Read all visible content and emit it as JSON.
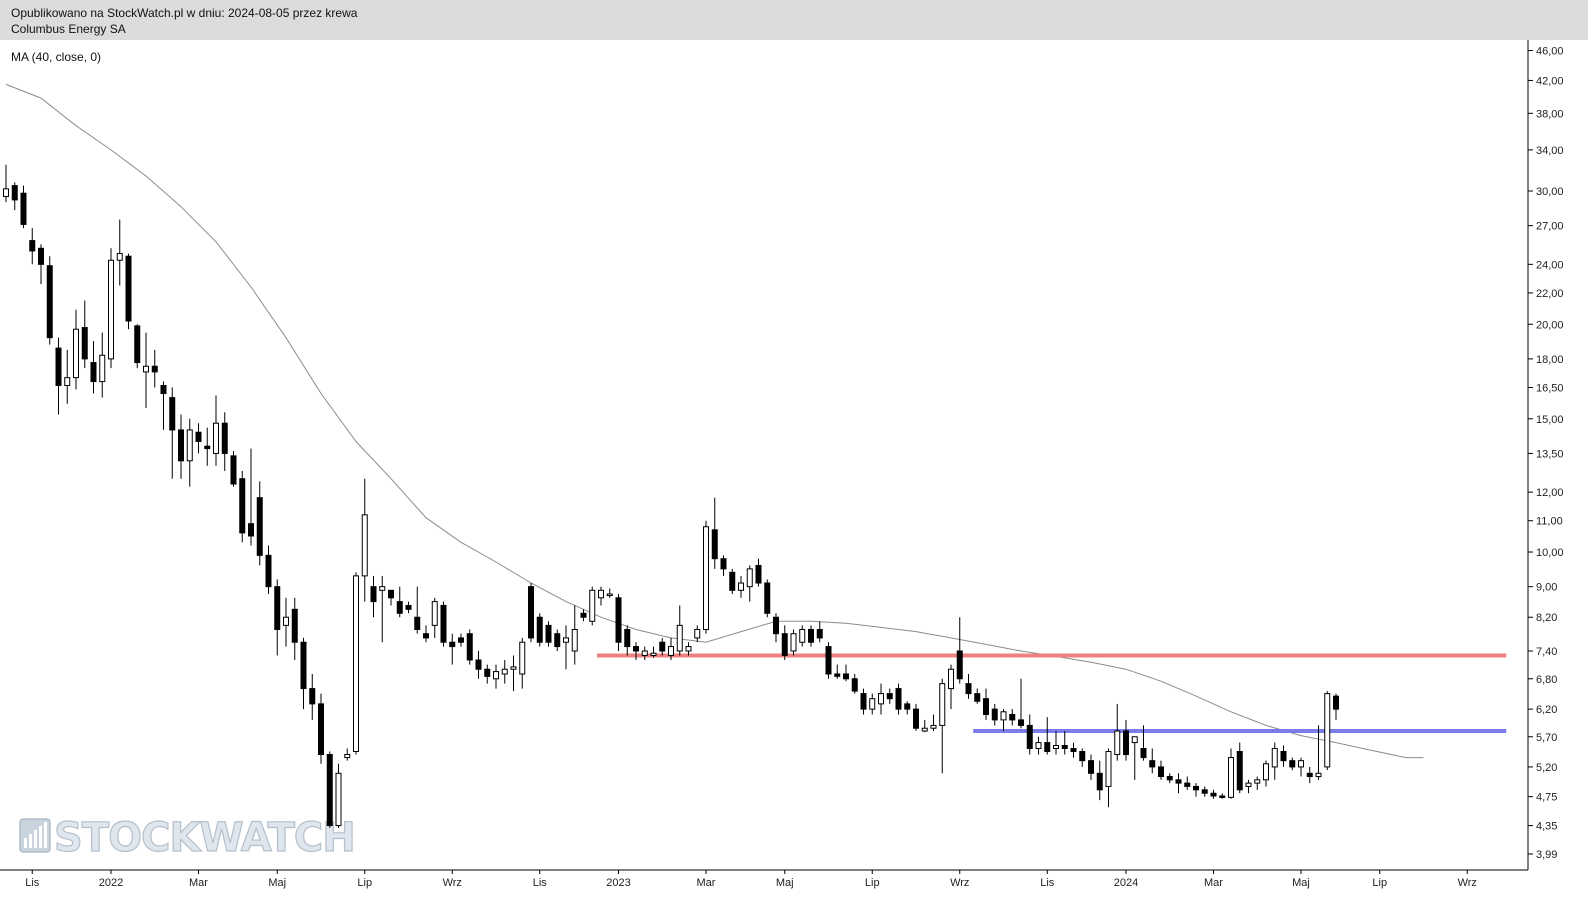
{
  "header": {
    "published": "Opublikowano na StockWatch.pl w dniu: 2024-08-05 przez krewa",
    "instrument": "Columbus Energy SA"
  },
  "indicator_label": "MA (40, close, 0)",
  "watermark": "STOCKWATCH",
  "colors": {
    "header_bg": "#dcdcdc",
    "resistance": "#f08080",
    "support": "#7b7bea",
    "ma_line": "#8c8c8c",
    "candle_up": "#ffffff",
    "candle_down": "#000000"
  },
  "chart_data": {
    "type": "candlestick",
    "timeframe": "weekly",
    "scale": "log",
    "y_range": [
      3.8,
      47.5
    ],
    "y_ticks": [
      "46,00",
      "42,00",
      "38,00",
      "34,00",
      "30,00",
      "27,00",
      "24,00",
      "22,00",
      "20,00",
      "18,00",
      "16,50",
      "15,00",
      "13,50",
      "12,00",
      "11,00",
      "10,00",
      "9,00",
      "8,20",
      "7,40",
      "6,80",
      "6,20",
      "5,70",
      "5,20",
      "4,75",
      "4,35",
      "3,99"
    ],
    "x_labels": [
      "Lis",
      "2022",
      "Mar",
      "Maj",
      "Lip",
      "Wrz",
      "Lis",
      "2023",
      "Mar",
      "Maj",
      "Lip",
      "Wrz",
      "Lis",
      "2024",
      "Mar",
      "Maj",
      "Lip",
      "Wrz"
    ],
    "x_label_index": [
      3,
      12,
      22,
      31,
      41,
      51,
      61,
      70,
      80,
      89,
      99,
      109,
      119,
      128,
      138,
      148,
      157,
      167
    ],
    "ma_series": {
      "name": "MA (40, close, 0)",
      "points": [
        [
          0,
          41.5
        ],
        [
          4,
          39.8
        ],
        [
          8,
          36.6
        ],
        [
          12,
          34.0
        ],
        [
          16,
          31.4
        ],
        [
          20,
          28.6
        ],
        [
          24,
          25.7
        ],
        [
          28,
          22.4
        ],
        [
          32,
          19.2
        ],
        [
          36,
          16.2
        ],
        [
          40,
          14.0
        ],
        [
          44,
          12.5
        ],
        [
          48,
          11.1
        ],
        [
          52,
          10.3
        ],
        [
          56,
          9.7
        ],
        [
          60,
          9.1
        ],
        [
          64,
          8.6
        ],
        [
          68,
          8.2
        ],
        [
          72,
          7.9
        ],
        [
          76,
          7.7
        ],
        [
          80,
          7.6
        ],
        [
          84,
          7.85
        ],
        [
          88,
          8.1
        ],
        [
          92,
          8.1
        ],
        [
          96,
          8.05
        ],
        [
          100,
          7.95
        ],
        [
          104,
          7.85
        ],
        [
          108,
          7.7
        ],
        [
          112,
          7.55
        ],
        [
          116,
          7.4
        ],
        [
          120,
          7.28
        ],
        [
          124,
          7.15
        ],
        [
          128,
          7.0
        ],
        [
          132,
          6.75
        ],
        [
          136,
          6.45
        ],
        [
          140,
          6.15
        ],
        [
          144,
          5.9
        ],
        [
          148,
          5.72
        ],
        [
          152,
          5.6
        ],
        [
          156,
          5.47
        ],
        [
          160,
          5.35
        ],
        [
          162,
          5.35
        ]
      ]
    },
    "resistance_line": {
      "value": 7.3,
      "from_index": 68,
      "to_index": 171
    },
    "support_line": {
      "value": 5.8,
      "from_index": 111,
      "to_index": 171
    },
    "candles": [
      {
        "o": 29.5,
        "h": 32.5,
        "l": 29.0,
        "c": 30.2
      },
      {
        "o": 30.5,
        "h": 30.8,
        "l": 28.3,
        "c": 29.2
      },
      {
        "o": 29.8,
        "h": 30.5,
        "l": 26.8,
        "c": 27.1
      },
      {
        "o": 25.8,
        "h": 26.8,
        "l": 24.0,
        "c": 25.0
      },
      {
        "o": 25.2,
        "h": 25.5,
        "l": 22.6,
        "c": 24.0
      },
      {
        "o": 23.9,
        "h": 24.6,
        "l": 18.8,
        "c": 19.2
      },
      {
        "o": 18.6,
        "h": 19.2,
        "l": 15.2,
        "c": 16.6
      },
      {
        "o": 16.6,
        "h": 18.5,
        "l": 15.7,
        "c": 17.0
      },
      {
        "o": 17.0,
        "h": 20.9,
        "l": 16.4,
        "c": 19.7
      },
      {
        "o": 19.8,
        "h": 21.5,
        "l": 17.5,
        "c": 18.0
      },
      {
        "o": 17.8,
        "h": 19.0,
        "l": 16.2,
        "c": 16.8
      },
      {
        "o": 16.8,
        "h": 19.5,
        "l": 16.0,
        "c": 18.2
      },
      {
        "o": 18.0,
        "h": 25.2,
        "l": 17.5,
        "c": 24.3
      },
      {
        "o": 24.3,
        "h": 27.5,
        "l": 22.5,
        "c": 24.8
      },
      {
        "o": 24.6,
        "h": 24.8,
        "l": 19.7,
        "c": 20.2
      },
      {
        "o": 19.9,
        "h": 20.0,
        "l": 17.5,
        "c": 17.8
      },
      {
        "o": 17.3,
        "h": 19.5,
        "l": 15.5,
        "c": 17.6
      },
      {
        "o": 17.6,
        "h": 18.5,
        "l": 16.5,
        "c": 17.3
      },
      {
        "o": 16.6,
        "h": 16.8,
        "l": 14.5,
        "c": 16.2
      },
      {
        "o": 16.0,
        "h": 16.5,
        "l": 12.5,
        "c": 14.5
      },
      {
        "o": 14.5,
        "h": 15.2,
        "l": 12.5,
        "c": 13.2
      },
      {
        "o": 13.2,
        "h": 15.0,
        "l": 12.2,
        "c": 14.5
      },
      {
        "o": 14.4,
        "h": 14.8,
        "l": 13.5,
        "c": 14.0
      },
      {
        "o": 13.8,
        "h": 14.6,
        "l": 13.0,
        "c": 13.7
      },
      {
        "o": 13.5,
        "h": 16.1,
        "l": 13.0,
        "c": 14.8
      },
      {
        "o": 14.8,
        "h": 15.3,
        "l": 12.8,
        "c": 13.5
      },
      {
        "o": 13.4,
        "h": 13.6,
        "l": 12.2,
        "c": 12.3
      },
      {
        "o": 12.5,
        "h": 12.8,
        "l": 10.3,
        "c": 10.6
      },
      {
        "o": 10.9,
        "h": 13.7,
        "l": 10.2,
        "c": 10.5
      },
      {
        "o": 11.8,
        "h": 12.4,
        "l": 9.6,
        "c": 9.9
      },
      {
        "o": 9.9,
        "h": 10.2,
        "l": 8.8,
        "c": 9.0
      },
      {
        "o": 9.0,
        "h": 9.2,
        "l": 7.3,
        "c": 7.9
      },
      {
        "o": 8.0,
        "h": 8.7,
        "l": 7.5,
        "c": 8.2
      },
      {
        "o": 8.4,
        "h": 8.7,
        "l": 7.2,
        "c": 7.6
      },
      {
        "o": 7.6,
        "h": 7.7,
        "l": 6.2,
        "c": 6.6
      },
      {
        "o": 6.6,
        "h": 6.9,
        "l": 6.0,
        "c": 6.3
      },
      {
        "o": 6.3,
        "h": 6.5,
        "l": 5.25,
        "c": 5.4
      },
      {
        "o": 5.4,
        "h": 5.45,
        "l": 4.32,
        "c": 4.35
      },
      {
        "o": 4.35,
        "h": 5.25,
        "l": 4.32,
        "c": 5.1
      },
      {
        "o": 5.35,
        "h": 5.5,
        "l": 5.3,
        "c": 5.4
      },
      {
        "o": 5.45,
        "h": 9.4,
        "l": 5.4,
        "c": 9.3
      },
      {
        "o": 9.3,
        "h": 12.5,
        "l": 8.6,
        "c": 11.2
      },
      {
        "o": 9.0,
        "h": 9.3,
        "l": 8.2,
        "c": 8.6
      },
      {
        "o": 8.9,
        "h": 9.3,
        "l": 7.6,
        "c": 9.0
      },
      {
        "o": 8.9,
        "h": 8.9,
        "l": 8.5,
        "c": 8.7
      },
      {
        "o": 8.6,
        "h": 9.0,
        "l": 8.2,
        "c": 8.3
      },
      {
        "o": 8.5,
        "h": 8.6,
        "l": 8.3,
        "c": 8.4
      },
      {
        "o": 8.2,
        "h": 9.0,
        "l": 7.8,
        "c": 7.9
      },
      {
        "o": 7.8,
        "h": 8.0,
        "l": 7.6,
        "c": 7.7
      },
      {
        "o": 8.0,
        "h": 8.7,
        "l": 7.7,
        "c": 8.6
      },
      {
        "o": 8.5,
        "h": 8.6,
        "l": 7.5,
        "c": 7.6
      },
      {
        "o": 7.6,
        "h": 7.8,
        "l": 7.1,
        "c": 7.5
      },
      {
        "o": 7.7,
        "h": 7.8,
        "l": 7.5,
        "c": 7.6
      },
      {
        "o": 7.8,
        "h": 7.9,
        "l": 7.1,
        "c": 7.2
      },
      {
        "o": 7.2,
        "h": 7.4,
        "l": 6.8,
        "c": 7.0
      },
      {
        "o": 7.0,
        "h": 7.1,
        "l": 6.7,
        "c": 6.85
      },
      {
        "o": 6.8,
        "h": 7.1,
        "l": 6.6,
        "c": 6.95
      },
      {
        "o": 6.9,
        "h": 7.2,
        "l": 6.7,
        "c": 7.0
      },
      {
        "o": 7.0,
        "h": 7.3,
        "l": 6.55,
        "c": 7.05
      },
      {
        "o": 6.9,
        "h": 7.7,
        "l": 6.6,
        "c": 7.6
      },
      {
        "o": 9.0,
        "h": 9.1,
        "l": 7.6,
        "c": 7.7
      },
      {
        "o": 8.2,
        "h": 8.3,
        "l": 7.5,
        "c": 7.6
      },
      {
        "o": 8.0,
        "h": 8.1,
        "l": 7.5,
        "c": 7.6
      },
      {
        "o": 7.8,
        "h": 7.9,
        "l": 7.4,
        "c": 7.5
      },
      {
        "o": 7.6,
        "h": 8.0,
        "l": 7.0,
        "c": 7.7
      },
      {
        "o": 7.4,
        "h": 8.5,
        "l": 7.1,
        "c": 7.9
      },
      {
        "o": 8.3,
        "h": 8.4,
        "l": 8.1,
        "c": 8.2
      },
      {
        "o": 8.1,
        "h": 9.0,
        "l": 8.0,
        "c": 8.9
      },
      {
        "o": 8.7,
        "h": 9.0,
        "l": 8.5,
        "c": 8.9
      },
      {
        "o": 8.8,
        "h": 8.95,
        "l": 8.7,
        "c": 8.8
      },
      {
        "o": 8.7,
        "h": 8.8,
        "l": 7.4,
        "c": 7.6
      },
      {
        "o": 7.9,
        "h": 8.0,
        "l": 7.3,
        "c": 7.5
      },
      {
        "o": 7.5,
        "h": 7.6,
        "l": 7.2,
        "c": 7.4
      },
      {
        "o": 7.3,
        "h": 7.5,
        "l": 7.2,
        "c": 7.4
      },
      {
        "o": 7.3,
        "h": 7.5,
        "l": 7.25,
        "c": 7.35
      },
      {
        "o": 7.6,
        "h": 7.7,
        "l": 7.3,
        "c": 7.4
      },
      {
        "o": 7.3,
        "h": 7.7,
        "l": 7.2,
        "c": 7.5
      },
      {
        "o": 7.4,
        "h": 8.5,
        "l": 7.3,
        "c": 8.0
      },
      {
        "o": 7.4,
        "h": 7.6,
        "l": 7.3,
        "c": 7.5
      },
      {
        "o": 7.7,
        "h": 8.0,
        "l": 7.6,
        "c": 7.9
      },
      {
        "o": 7.9,
        "h": 11.0,
        "l": 7.8,
        "c": 10.8
      },
      {
        "o": 10.7,
        "h": 11.8,
        "l": 9.5,
        "c": 9.8
      },
      {
        "o": 9.8,
        "h": 9.9,
        "l": 9.3,
        "c": 9.5
      },
      {
        "o": 9.4,
        "h": 9.5,
        "l": 8.8,
        "c": 8.9
      },
      {
        "o": 8.9,
        "h": 9.3,
        "l": 8.7,
        "c": 9.1
      },
      {
        "o": 9.0,
        "h": 9.6,
        "l": 8.6,
        "c": 9.5
      },
      {
        "o": 9.6,
        "h": 9.8,
        "l": 9.0,
        "c": 9.1
      },
      {
        "o": 9.1,
        "h": 9.2,
        "l": 8.2,
        "c": 8.3
      },
      {
        "o": 8.2,
        "h": 8.3,
        "l": 7.6,
        "c": 7.8
      },
      {
        "o": 7.8,
        "h": 8.0,
        "l": 7.2,
        "c": 7.3
      },
      {
        "o": 7.4,
        "h": 7.9,
        "l": 7.3,
        "c": 7.8
      },
      {
        "o": 7.6,
        "h": 8.0,
        "l": 7.5,
        "c": 7.9
      },
      {
        "o": 7.9,
        "h": 8.0,
        "l": 7.5,
        "c": 7.6
      },
      {
        "o": 7.9,
        "h": 8.1,
        "l": 7.6,
        "c": 7.7
      },
      {
        "o": 7.5,
        "h": 7.6,
        "l": 6.8,
        "c": 6.9
      },
      {
        "o": 6.9,
        "h": 7.1,
        "l": 6.8,
        "c": 6.85
      },
      {
        "o": 6.9,
        "h": 7.1,
        "l": 6.75,
        "c": 6.8
      },
      {
        "o": 6.8,
        "h": 6.9,
        "l": 6.5,
        "c": 6.55
      },
      {
        "o": 6.5,
        "h": 6.6,
        "l": 6.1,
        "c": 6.2
      },
      {
        "o": 6.2,
        "h": 6.5,
        "l": 6.1,
        "c": 6.4
      },
      {
        "o": 6.3,
        "h": 6.7,
        "l": 6.1,
        "c": 6.5
      },
      {
        "o": 6.5,
        "h": 6.6,
        "l": 6.3,
        "c": 6.4
      },
      {
        "o": 6.6,
        "h": 6.7,
        "l": 6.1,
        "c": 6.2
      },
      {
        "o": 6.3,
        "h": 6.35,
        "l": 6.1,
        "c": 6.2
      },
      {
        "o": 6.2,
        "h": 6.3,
        "l": 5.8,
        "c": 5.85
      },
      {
        "o": 5.8,
        "h": 6.0,
        "l": 5.78,
        "c": 5.85
      },
      {
        "o": 5.85,
        "h": 6.1,
        "l": 5.8,
        "c": 5.9
      },
      {
        "o": 5.9,
        "h": 6.8,
        "l": 5.1,
        "c": 6.7
      },
      {
        "o": 6.6,
        "h": 7.1,
        "l": 6.2,
        "c": 7.0
      },
      {
        "o": 7.4,
        "h": 8.2,
        "l": 6.7,
        "c": 6.8
      },
      {
        "o": 6.7,
        "h": 6.9,
        "l": 6.4,
        "c": 6.5
      },
      {
        "o": 6.5,
        "h": 6.6,
        "l": 6.3,
        "c": 6.35
      },
      {
        "o": 6.4,
        "h": 6.6,
        "l": 6.0,
        "c": 6.1
      },
      {
        "o": 6.2,
        "h": 6.3,
        "l": 5.9,
        "c": 6.0
      },
      {
        "o": 6.0,
        "h": 6.2,
        "l": 5.8,
        "c": 6.15
      },
      {
        "o": 6.1,
        "h": 6.2,
        "l": 5.9,
        "c": 6.0
      },
      {
        "o": 6.0,
        "h": 6.8,
        "l": 5.85,
        "c": 5.9
      },
      {
        "o": 5.9,
        "h": 6.1,
        "l": 5.4,
        "c": 5.5
      },
      {
        "o": 5.5,
        "h": 5.7,
        "l": 5.4,
        "c": 5.6
      },
      {
        "o": 5.6,
        "h": 6.05,
        "l": 5.4,
        "c": 5.45
      },
      {
        "o": 5.5,
        "h": 5.8,
        "l": 5.4,
        "c": 5.55
      },
      {
        "o": 5.55,
        "h": 5.8,
        "l": 5.4,
        "c": 5.5
      },
      {
        "o": 5.5,
        "h": 5.6,
        "l": 5.35,
        "c": 5.45
      },
      {
        "o": 5.45,
        "h": 5.5,
        "l": 5.2,
        "c": 5.3
      },
      {
        "o": 5.3,
        "h": 5.4,
        "l": 5.0,
        "c": 5.1
      },
      {
        "o": 5.1,
        "h": 5.3,
        "l": 4.7,
        "c": 4.85
      },
      {
        "o": 4.9,
        "h": 5.5,
        "l": 4.6,
        "c": 5.45
      },
      {
        "o": 5.4,
        "h": 6.3,
        "l": 5.3,
        "c": 5.8
      },
      {
        "o": 5.8,
        "h": 6.0,
        "l": 5.3,
        "c": 5.4
      },
      {
        "o": 5.6,
        "h": 5.7,
        "l": 5.0,
        "c": 5.7
      },
      {
        "o": 5.5,
        "h": 5.9,
        "l": 5.3,
        "c": 5.35
      },
      {
        "o": 5.3,
        "h": 5.5,
        "l": 5.1,
        "c": 5.2
      },
      {
        "o": 5.2,
        "h": 5.3,
        "l": 5.0,
        "c": 5.05
      },
      {
        "o": 5.05,
        "h": 5.1,
        "l": 4.95,
        "c": 5.0
      },
      {
        "o": 5.0,
        "h": 5.1,
        "l": 4.8,
        "c": 4.95
      },
      {
        "o": 4.95,
        "h": 5.05,
        "l": 4.85,
        "c": 4.9
      },
      {
        "o": 4.9,
        "h": 4.95,
        "l": 4.75,
        "c": 4.85
      },
      {
        "o": 4.85,
        "h": 4.9,
        "l": 4.75,
        "c": 4.8
      },
      {
        "o": 4.8,
        "h": 4.85,
        "l": 4.72,
        "c": 4.76
      },
      {
        "o": 4.76,
        "h": 4.8,
        "l": 4.72,
        "c": 4.74
      },
      {
        "o": 4.74,
        "h": 5.5,
        "l": 4.72,
        "c": 5.35
      },
      {
        "o": 5.45,
        "h": 5.6,
        "l": 4.8,
        "c": 4.85
      },
      {
        "o": 4.9,
        "h": 5.0,
        "l": 4.8,
        "c": 4.95
      },
      {
        "o": 4.95,
        "h": 5.05,
        "l": 4.85,
        "c": 5.0
      },
      {
        "o": 5.0,
        "h": 5.3,
        "l": 4.9,
        "c": 5.25
      },
      {
        "o": 5.2,
        "h": 5.6,
        "l": 5.0,
        "c": 5.5
      },
      {
        "o": 5.45,
        "h": 5.55,
        "l": 5.2,
        "c": 5.3
      },
      {
        "o": 5.3,
        "h": 5.35,
        "l": 5.15,
        "c": 5.2
      },
      {
        "o": 5.2,
        "h": 5.35,
        "l": 5.05,
        "c": 5.3
      },
      {
        "o": 5.1,
        "h": 5.2,
        "l": 4.95,
        "c": 5.05
      },
      {
        "o": 5.05,
        "h": 5.9,
        "l": 5.0,
        "c": 5.1
      },
      {
        "o": 5.2,
        "h": 6.55,
        "l": 5.15,
        "c": 6.5
      },
      {
        "o": 6.45,
        "h": 6.5,
        "l": 6.0,
        "c": 6.2
      }
    ]
  }
}
